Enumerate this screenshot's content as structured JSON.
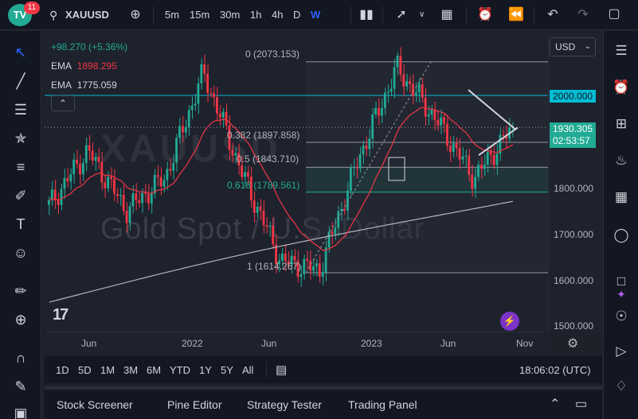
{
  "toolbar": {
    "badge_count": "11",
    "symbol": "XAUUSD",
    "intervals": [
      "5m",
      "15m",
      "30m",
      "1h",
      "4h",
      "D",
      "W"
    ],
    "active_interval": "W",
    "icons": [
      "search-icon",
      "add-symbol-icon",
      "bar-type-icon",
      "indicators-icon",
      "chevron-down-icon",
      "layout-icon",
      "alert-icon",
      "replay-icon",
      "undo-icon",
      "redo-icon",
      "fullscreen-icon"
    ]
  },
  "legend": {
    "change": "+98.270 (+5.36%)",
    "ema1_label": "EMA",
    "ema1_value": "1898.295",
    "ema2_label": "EMA",
    "ema2_value": "1775.059",
    "collapse_icon": "chevron-up-icon"
  },
  "fib_levels": [
    {
      "label": "0 (2073.153)",
      "price": 2073.153
    },
    {
      "label": "0.382 (1897.858)",
      "price": 1897.858
    },
    {
      "label": "0.5 (1843.710)",
      "price": 1843.71
    },
    {
      "label": "0.618 (1789.561)",
      "price": 1789.561
    },
    {
      "label": "1 (1614.267)",
      "price": 1614.267
    }
  ],
  "watermark": "Gold Spot / U.S. Dollar",
  "price_axis": {
    "currency": "USD",
    "labels": [
      "2000.000",
      "1800.000",
      "1700.000",
      "1600.000",
      "1500.000"
    ],
    "highlight_level": "2000.000",
    "current_price": "1930.305",
    "countdown": "02:53:57",
    "colors": {
      "highlight": "#00bcd4",
      "current": "#22ab94",
      "ema_fast": "#f23645",
      "ema_slow": "#b2b5be",
      "up": "#22ab94",
      "down": "#f23645"
    }
  },
  "time_axis": {
    "labels": [
      "Jun",
      "2022",
      "Jun",
      "2023",
      "Jun",
      "Nov"
    ]
  },
  "range_bar": {
    "ranges": [
      "1D",
      "5D",
      "1M",
      "3M",
      "6M",
      "YTD",
      "1Y",
      "5Y",
      "All"
    ],
    "clock": "18:06:02 (UTC)"
  },
  "bottom_panel": {
    "tabs": [
      "Stock Screener",
      "Pine Editor",
      "Strategy Tester",
      "Trading Panel"
    ]
  },
  "chart_data": {
    "type": "candlestick",
    "symbol": "XAUUSD",
    "interval": "W",
    "ylim": [
      1500,
      2100
    ],
    "ema_fast_value": 1898.295,
    "ema_slow_value": 1775.059,
    "current_price": 1930.305,
    "key_points": [
      {
        "date": "2021-04",
        "close": 1760
      },
      {
        "date": "2021-06",
        "close": 1880
      },
      {
        "date": "2021-09",
        "close": 1750
      },
      {
        "date": "2022-01",
        "close": 1820
      },
      {
        "date": "2022-03",
        "close": 2050
      },
      {
        "date": "2022-06",
        "close": 1830
      },
      {
        "date": "2022-09",
        "close": 1640
      },
      {
        "date": "2022-11",
        "close": 1620
      },
      {
        "date": "2023-02",
        "close": 1860
      },
      {
        "date": "2023-05",
        "close": 2060
      },
      {
        "date": "2023-07",
        "close": 1950
      },
      {
        "date": "2023-10",
        "close": 1820
      },
      {
        "date": "2023-10",
        "close": 1930.305
      }
    ]
  }
}
